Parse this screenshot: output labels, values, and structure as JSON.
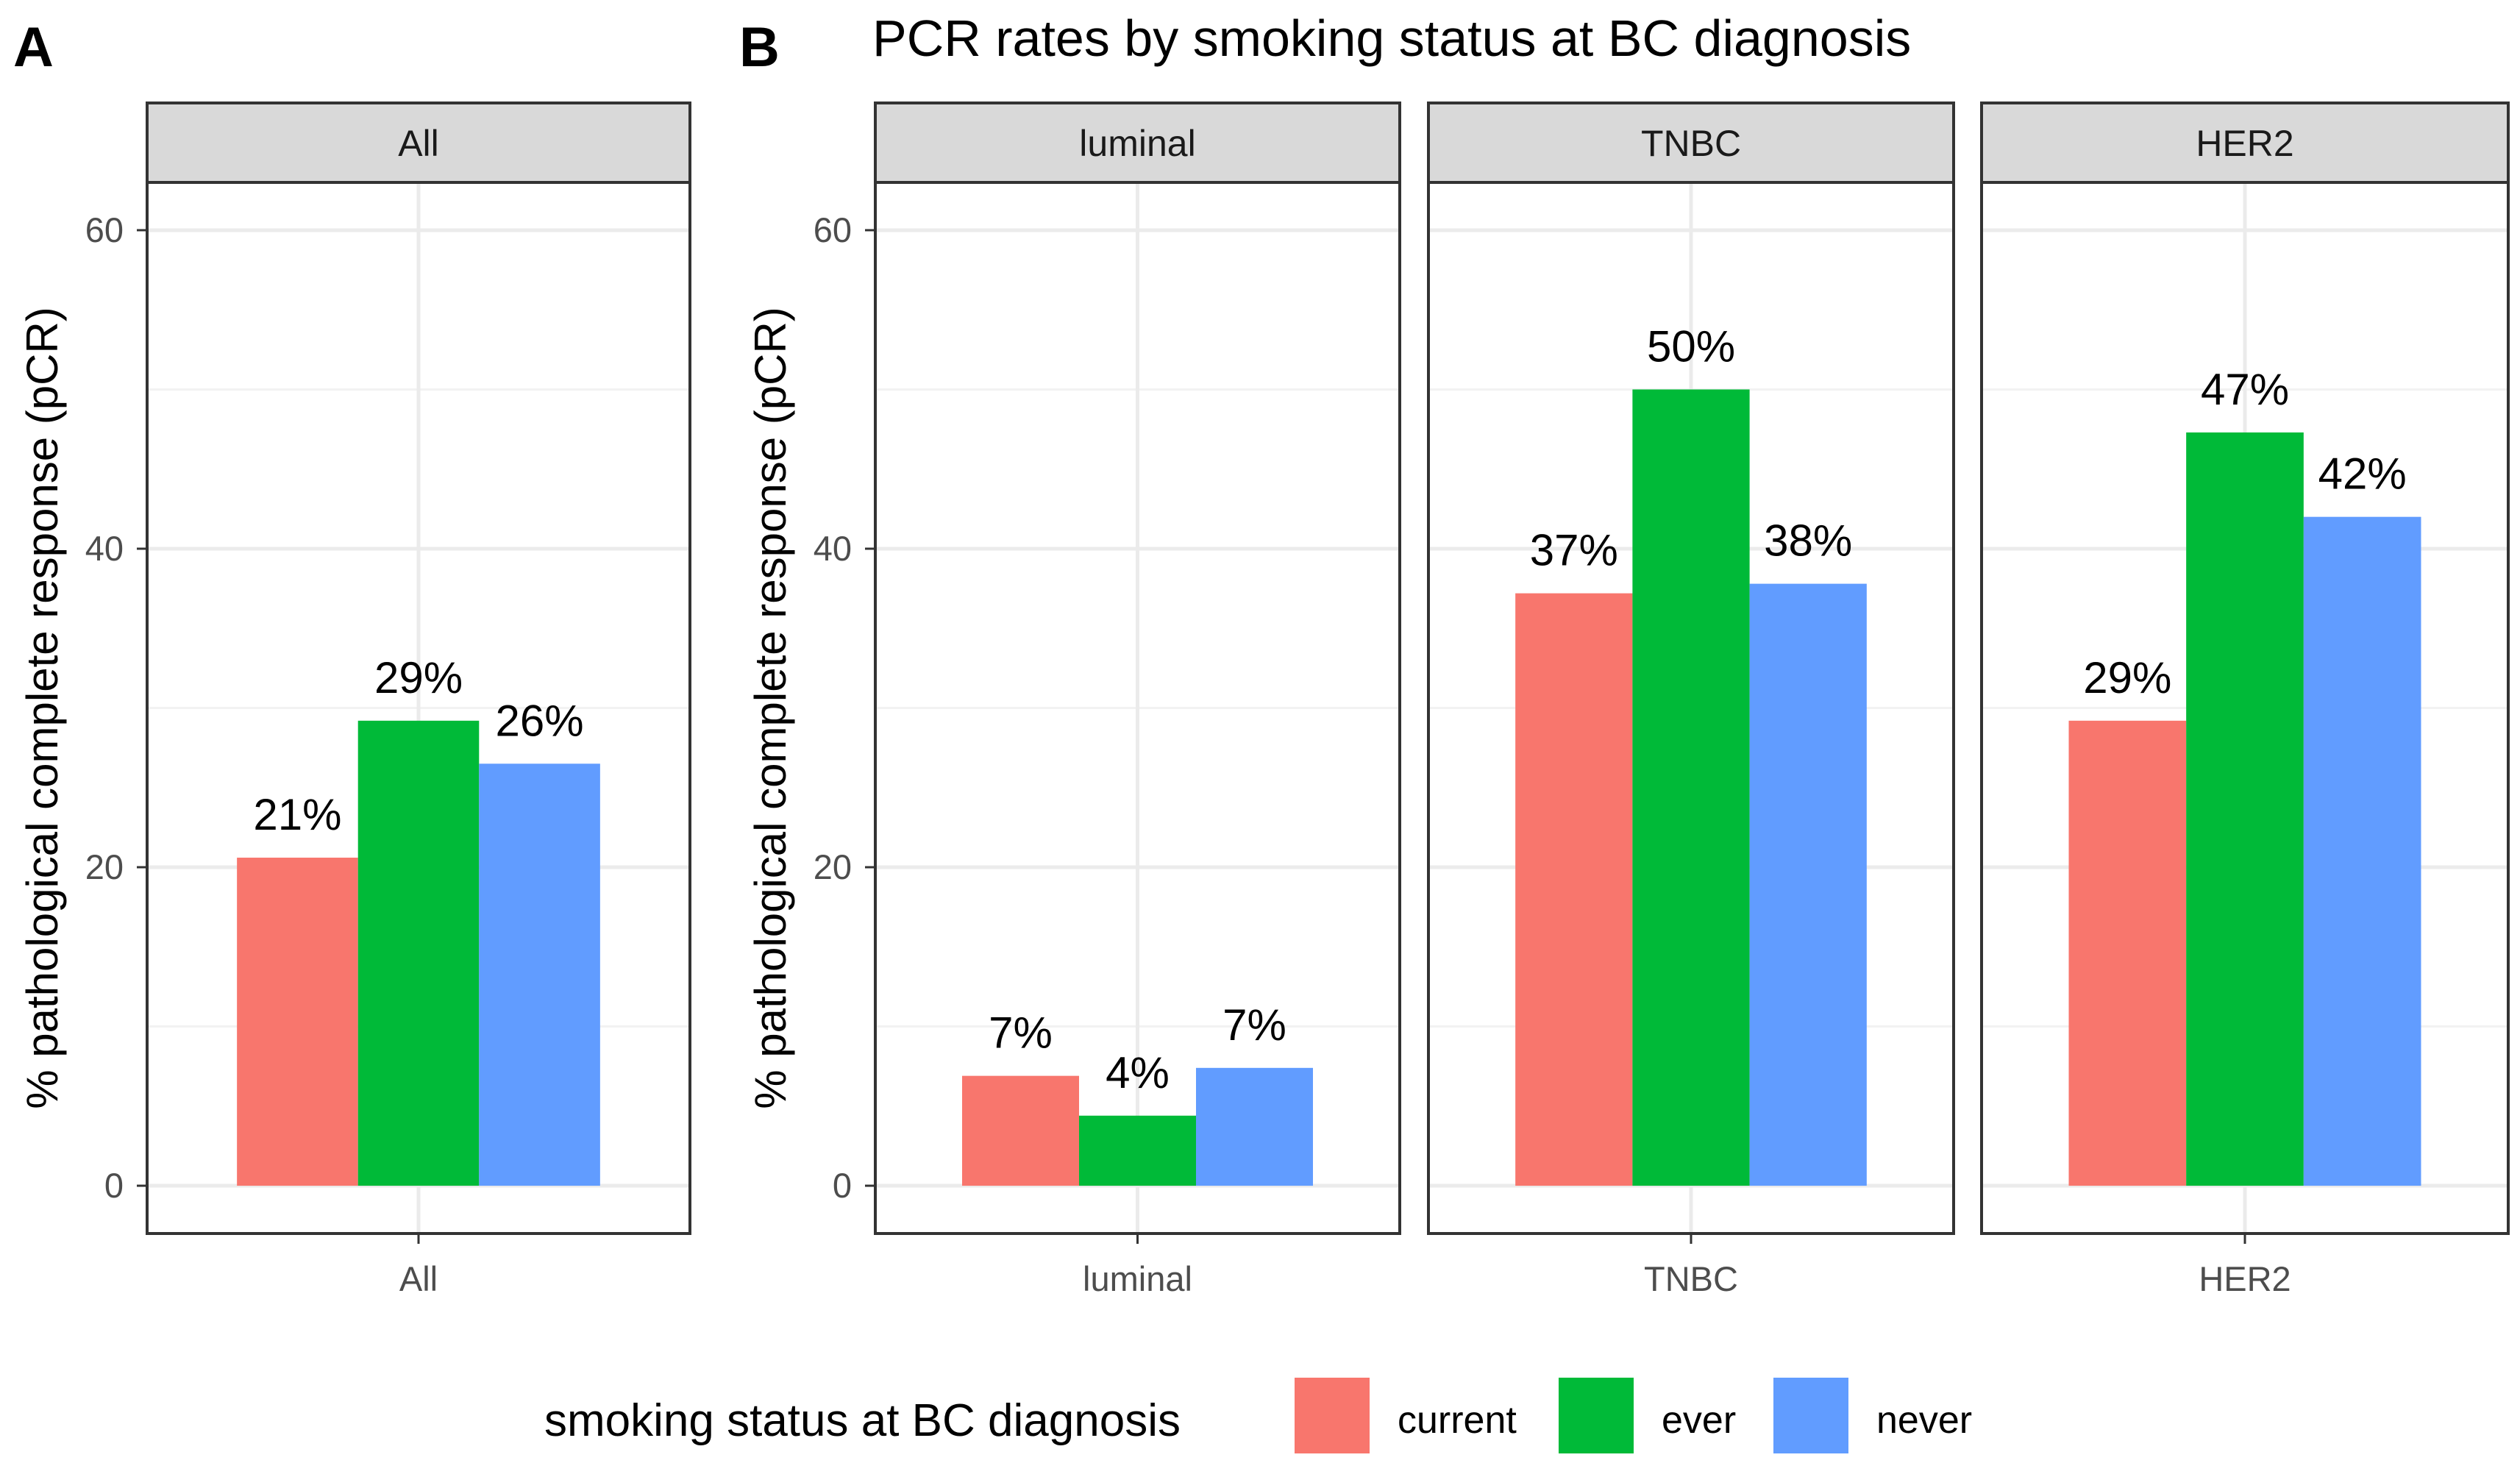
{
  "chart_data": {
    "type": "bar",
    "title": "PCR rates by smoking status at BC diagnosis",
    "ylabel": "% pathological complete response (pCR)",
    "ylim": [
      -3,
      63
    ],
    "yticks": [
      0,
      20,
      40,
      60
    ],
    "grid": true,
    "legend": {
      "title": "smoking status at BC diagnosis",
      "position": "bottom",
      "entries": [
        {
          "name": "current",
          "color": "#F8766D"
        },
        {
          "name": "ever",
          "color": "#00BA38"
        },
        {
          "name": "never",
          "color": "#619CFF"
        }
      ]
    },
    "panels": [
      {
        "tag": "A",
        "facets": [
          {
            "strip": "All",
            "category": "All",
            "values": [
              20.6,
              29.2,
              26.5
            ],
            "labels": [
              "21%",
              "29%",
              "26%"
            ]
          }
        ]
      },
      {
        "tag": "B",
        "facets": [
          {
            "strip": "luminal",
            "category": "luminal",
            "values": [
              6.9,
              4.4,
              7.4
            ],
            "labels": [
              "7%",
              "4%",
              "7%"
            ]
          },
          {
            "strip": "TNBC",
            "category": "TNBC",
            "values": [
              37.2,
              50.0,
              37.8
            ],
            "labels": [
              "37%",
              "50%",
              "38%"
            ]
          },
          {
            "strip": "HER2",
            "category": "HER2",
            "values": [
              29.2,
              47.3,
              42.0
            ],
            "labels": [
              "29%",
              "47%",
              "42%"
            ]
          }
        ]
      }
    ]
  }
}
